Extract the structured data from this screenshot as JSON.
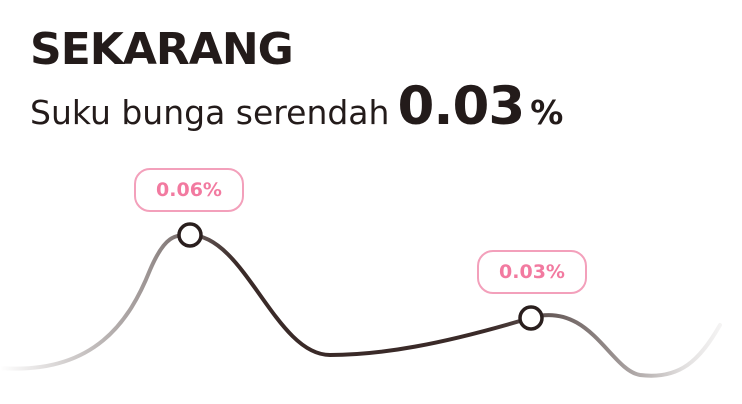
{
  "headline": "SEKARANG",
  "subheadline": {
    "text": "Suku bunga serendah",
    "rate_value": "0.03",
    "rate_unit": "%"
  },
  "chart_data": {
    "type": "line",
    "series": [
      {
        "points": [
          {
            "label": "0.06%",
            "value": 0.06
          },
          {
            "label": "0.03%",
            "value": 0.03
          }
        ]
      }
    ]
  },
  "colors": {
    "text": "#231b1a",
    "line": "#3a2a28",
    "label_border": "#f3a0bb",
    "label_text": "#f27aa0"
  }
}
